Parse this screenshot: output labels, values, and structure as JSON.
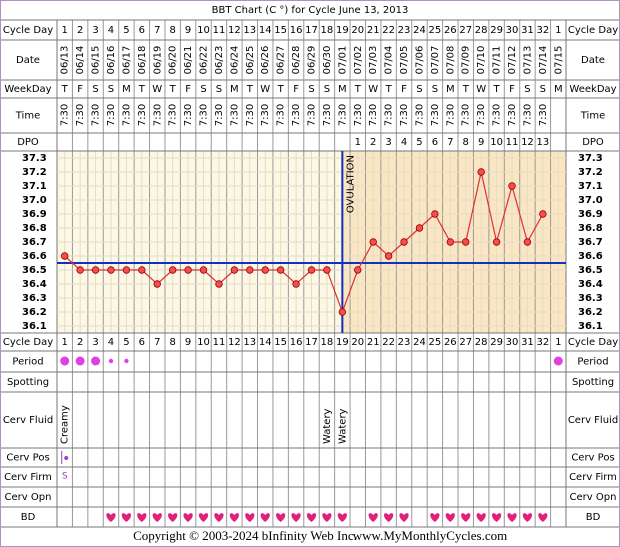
{
  "chart_data": {
    "type": "line",
    "title": "BBT Chart (C °) for Cycle June 13, 2013",
    "row_labels": {
      "cycle_day": "Cycle Day",
      "date": "Date",
      "weekday": "WeekDay",
      "time": "Time",
      "dpo": "DPO",
      "period": "Period",
      "spotting": "Spotting",
      "cerv_fluid": "Cerv Fluid",
      "cerv_pos": "Cerv Pos",
      "cerv_firm": "Cerv Firm",
      "cerv_opn": "Cerv Opn",
      "bd": "BD"
    },
    "categories": [
      1,
      2,
      3,
      4,
      5,
      6,
      7,
      8,
      9,
      10,
      11,
      12,
      13,
      14,
      15,
      16,
      17,
      18,
      19,
      20,
      21,
      22,
      23,
      24,
      25,
      26,
      27,
      28,
      29,
      30,
      31,
      32,
      1
    ],
    "dates": [
      "06/13",
      "06/14",
      "06/15",
      "06/16",
      "06/17",
      "06/18",
      "06/19",
      "06/20",
      "06/21",
      "06/22",
      "06/23",
      "06/24",
      "06/25",
      "06/26",
      "06/27",
      "06/28",
      "06/29",
      "06/30",
      "07/01",
      "07/02",
      "07/03",
      "07/04",
      "07/05",
      "07/06",
      "07/07",
      "07/08",
      "07/09",
      "07/10",
      "07/11",
      "07/12",
      "07/13",
      "07/14",
      "07/15"
    ],
    "weekdays": [
      "T",
      "F",
      "S",
      "S",
      "M",
      "T",
      "W",
      "T",
      "F",
      "S",
      "S",
      "M",
      "T",
      "W",
      "T",
      "F",
      "S",
      "S",
      "M",
      "T",
      "W",
      "T",
      "F",
      "S",
      "S",
      "M",
      "T",
      "W",
      "T",
      "F",
      "S",
      "S",
      "M"
    ],
    "times": [
      "7:30",
      "7:30",
      "7:30",
      "7:30",
      "7:30",
      "7:30",
      "7:30",
      "7:30",
      "7:30",
      "7:30",
      "7:30",
      "7:30",
      "7:30",
      "7:30",
      "7:30",
      "7:30",
      "7:30",
      "7:30",
      "7:30",
      "7:30",
      "7:30",
      "7:30",
      "7:30",
      "7:30",
      "7:30",
      "7:30",
      "7:30",
      "7:30",
      "7:30",
      "7:30",
      "7:30",
      "7:30",
      null
    ],
    "dpo": [
      null,
      null,
      null,
      null,
      null,
      null,
      null,
      null,
      null,
      null,
      null,
      null,
      null,
      null,
      null,
      null,
      null,
      null,
      null,
      1,
      2,
      3,
      4,
      5,
      6,
      7,
      8,
      9,
      10,
      11,
      12,
      13,
      null
    ],
    "values": [
      36.6,
      36.5,
      36.5,
      36.5,
      36.5,
      36.5,
      36.4,
      36.5,
      36.5,
      36.5,
      36.4,
      36.5,
      36.5,
      36.5,
      36.5,
      36.4,
      36.5,
      36.5,
      36.2,
      36.5,
      36.7,
      36.6,
      36.7,
      36.8,
      36.9,
      36.7,
      36.7,
      37.2,
      36.7,
      37.1,
      36.7,
      36.9,
      null
    ],
    "color": "#e03030",
    "ylim": [
      36.05,
      37.35
    ],
    "yticks": [
      36.1,
      36.2,
      36.3,
      36.4,
      36.5,
      36.6,
      36.7,
      36.8,
      36.9,
      {
        "value": 37,
        "label": "37.0"
      },
      37.1,
      37.2,
      37.3
    ],
    "coverline": 36.55,
    "ovulation_label": "OVULATION",
    "ovulation_day": 19,
    "period": [
      "heavy",
      "heavy",
      "heavy",
      "light",
      "light",
      null,
      null,
      null,
      null,
      null,
      null,
      null,
      null,
      null,
      null,
      null,
      null,
      null,
      null,
      null,
      null,
      null,
      null,
      null,
      null,
      null,
      null,
      null,
      null,
      null,
      null,
      null,
      "heavy"
    ],
    "cerv_fluid": [
      "Creamy",
      null,
      null,
      null,
      null,
      null,
      null,
      null,
      null,
      null,
      null,
      null,
      null,
      null,
      null,
      null,
      null,
      "Watery",
      "Watery",
      null,
      null,
      null,
      null,
      null,
      null,
      null,
      null,
      null,
      null,
      null,
      null,
      null,
      null
    ],
    "cerv_pos_days": [
      1
    ],
    "cerv_firm": [
      "S",
      null,
      null,
      null,
      null,
      null,
      null,
      null,
      null,
      null,
      null,
      null,
      null,
      null,
      null,
      null,
      null,
      null,
      null,
      null,
      null,
      null,
      null,
      null,
      null,
      null,
      null,
      null,
      null,
      null,
      null,
      null,
      null
    ],
    "bd_days": [
      4,
      5,
      6,
      7,
      8,
      9,
      10,
      11,
      12,
      13,
      14,
      15,
      16,
      17,
      18,
      19,
      21,
      22,
      23,
      25,
      26,
      27,
      28,
      29,
      30,
      31,
      32
    ],
    "footer": "Copyright © 2003-2024 bInfinity Web Inc.",
    "website": "www.MyMonthlyCycles.com"
  }
}
